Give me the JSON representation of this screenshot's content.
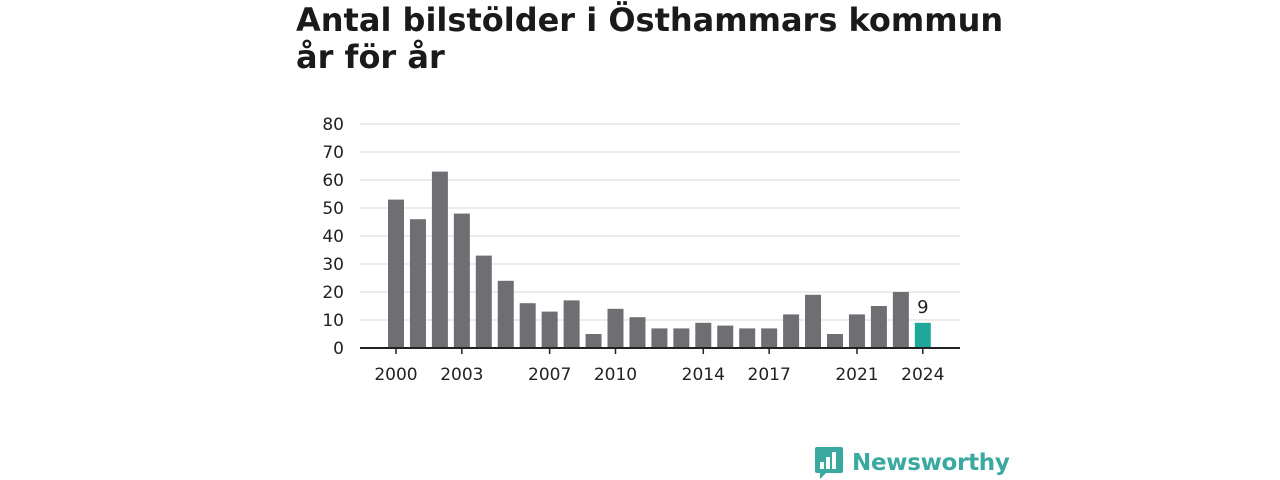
{
  "title": "Antal bilstölder i Östhammars kommun år för år",
  "brand": {
    "name": "Newsworthy",
    "icon": "bar-chart-speech-bubble-icon",
    "color": "#3aa99f"
  },
  "chart_data": {
    "type": "bar",
    "title": "Antal bilstölder i Östhammars kommun år för år",
    "xlabel": "",
    "ylabel": "",
    "categories": [
      "2000",
      "2001",
      "2002",
      "2003",
      "2004",
      "2005",
      "2006",
      "2007",
      "2008",
      "2009",
      "2010",
      "2011",
      "2012",
      "2013",
      "2014",
      "2015",
      "2016",
      "2017",
      "2018",
      "2019",
      "2020",
      "2021",
      "2022",
      "2023",
      "2024"
    ],
    "values": [
      53,
      46,
      63,
      48,
      33,
      24,
      16,
      13,
      17,
      5,
      14,
      11,
      7,
      7,
      9,
      8,
      7,
      7,
      12,
      19,
      5,
      12,
      15,
      20,
      9
    ],
    "ylim": [
      0,
      80
    ],
    "yticks": [
      0,
      10,
      20,
      30,
      40,
      50,
      60,
      70,
      80
    ],
    "xtick_labels": [
      "2000",
      "2003",
      "2007",
      "2010",
      "2014",
      "2017",
      "2021",
      "2024"
    ],
    "grid": true,
    "colors": {
      "bar": "#6f6f73",
      "highlight": "#1fa89a",
      "grid": "#d9d9d9",
      "axis": "#222222"
    },
    "highlight_category": "2024",
    "data_labels": [
      {
        "category": "2024",
        "text": "9"
      }
    ]
  }
}
